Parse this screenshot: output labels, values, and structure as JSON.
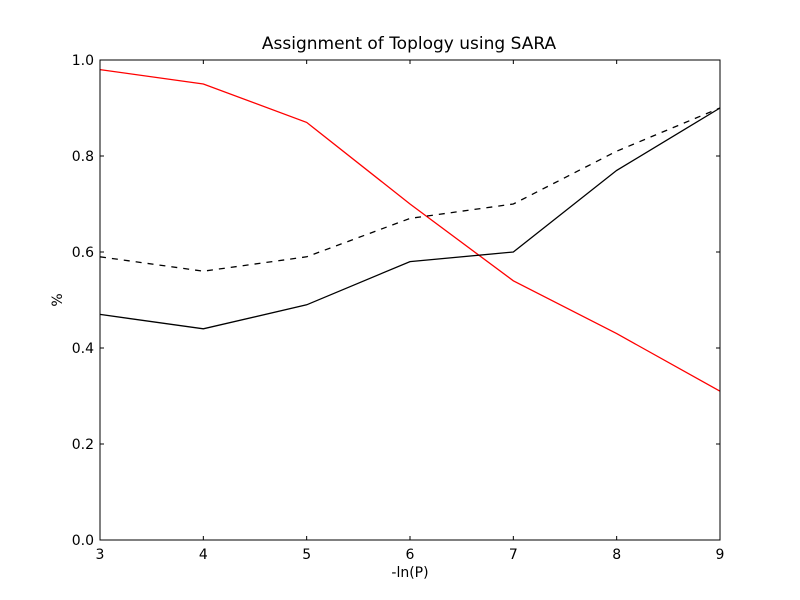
{
  "chart_data": {
    "type": "line",
    "title": "Assignment of Toplogy using SARA",
    "xlabel": "-ln(P)",
    "ylabel": "%",
    "xlim": [
      3,
      9
    ],
    "ylim": [
      0.0,
      1.0
    ],
    "x_ticks": [
      3,
      4,
      5,
      6,
      7,
      8,
      9
    ],
    "x_tick_labels": [
      "3",
      "4",
      "5",
      "6",
      "7",
      "8",
      "9"
    ],
    "y_ticks": [
      0.0,
      0.2,
      0.4,
      0.6,
      0.8,
      1.0
    ],
    "y_tick_labels": [
      "0.0",
      "0.2",
      "0.4",
      "0.6",
      "0.8",
      "1.0"
    ],
    "grid": false,
    "x": [
      3,
      4,
      5,
      6,
      7,
      8,
      9
    ],
    "series": [
      {
        "color": "#ff0000",
        "style": "solid",
        "values": [
          0.98,
          0.95,
          0.87,
          0.7,
          0.54,
          0.43,
          0.31
        ]
      },
      {
        "color": "#000000",
        "style": "dashed",
        "values": [
          0.59,
          0.56,
          0.59,
          0.67,
          0.7,
          0.81,
          0.9
        ]
      },
      {
        "color": "#000000",
        "style": "solid",
        "values": [
          0.47,
          0.44,
          0.49,
          0.58,
          0.6,
          0.77,
          0.9
        ]
      }
    ]
  }
}
